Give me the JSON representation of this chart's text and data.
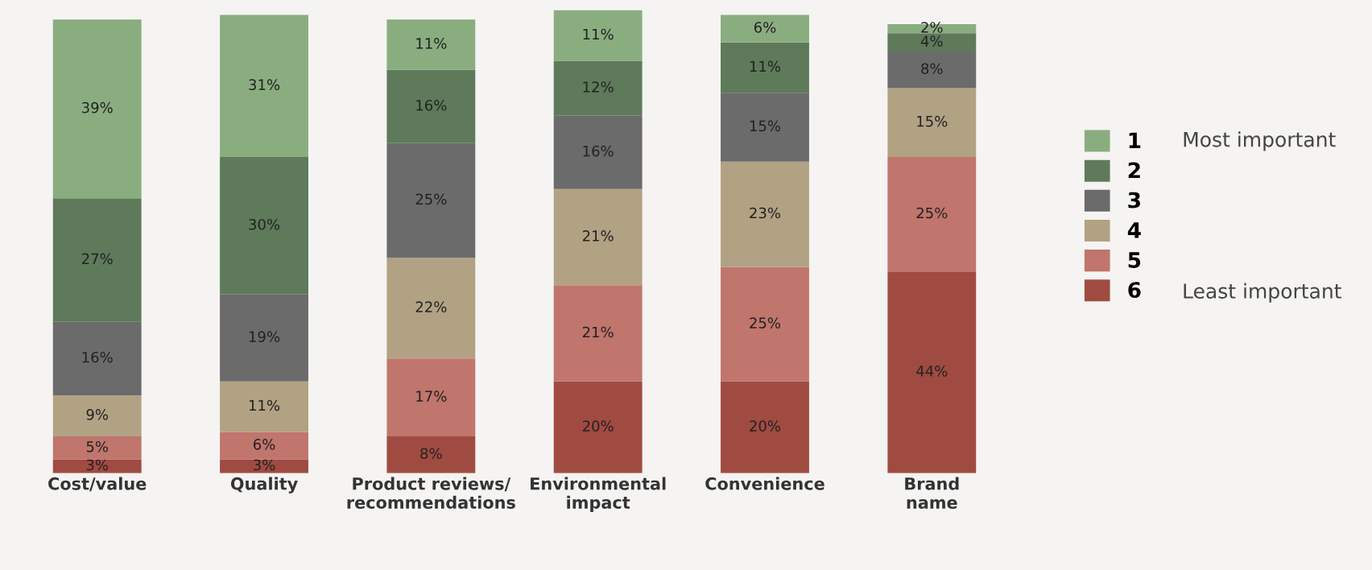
{
  "chart_data": {
    "type": "bar",
    "stacked": true,
    "legend": "right",
    "categories": [
      "Cost/value",
      "Quality",
      "Product reviews/\nrecommendations",
      "Environmental\nimpact",
      "Convenience",
      "Brand\nname"
    ],
    "series": [
      {
        "name": "6",
        "color": "#a04b41",
        "values": [
          3,
          3,
          8,
          20,
          20,
          44
        ],
        "value_labels": [
          "3%",
          "3%",
          "8%",
          "20%",
          "20%",
          "44%"
        ]
      },
      {
        "name": "5",
        "color": "#c0756d",
        "values": [
          5,
          6,
          17,
          21,
          25,
          25
        ],
        "value_labels": [
          "5%",
          "6%",
          "17%",
          "21%",
          "25%",
          "25%"
        ]
      },
      {
        "name": "4",
        "color": "#b2a284",
        "values": [
          9,
          11,
          22,
          21,
          23,
          15
        ],
        "value_labels": [
          "9%",
          "11%",
          "22%",
          "21%",
          "23%",
          "15%"
        ]
      },
      {
        "name": "3",
        "color": "#6b6b6b",
        "values": [
          16,
          19,
          25,
          16,
          15,
          8
        ],
        "value_labels": [
          "16%",
          "19%",
          "25%",
          "16%",
          "15%",
          "8%"
        ]
      },
      {
        "name": "2",
        "color": "#5e7a5a",
        "values": [
          27,
          30,
          16,
          12,
          11,
          4
        ],
        "value_labels": [
          "27%",
          "30%",
          "16%",
          "12%",
          "11%",
          "4%"
        ]
      },
      {
        "name": "1",
        "color": "#8aad80",
        "values": [
          39,
          31,
          11,
          11,
          6,
          2
        ],
        "value_labels": [
          "39%",
          "31%",
          "11%",
          "11%",
          "6%",
          "2%"
        ]
      }
    ],
    "annotations": [
      "Most important",
      "Least important"
    ]
  }
}
